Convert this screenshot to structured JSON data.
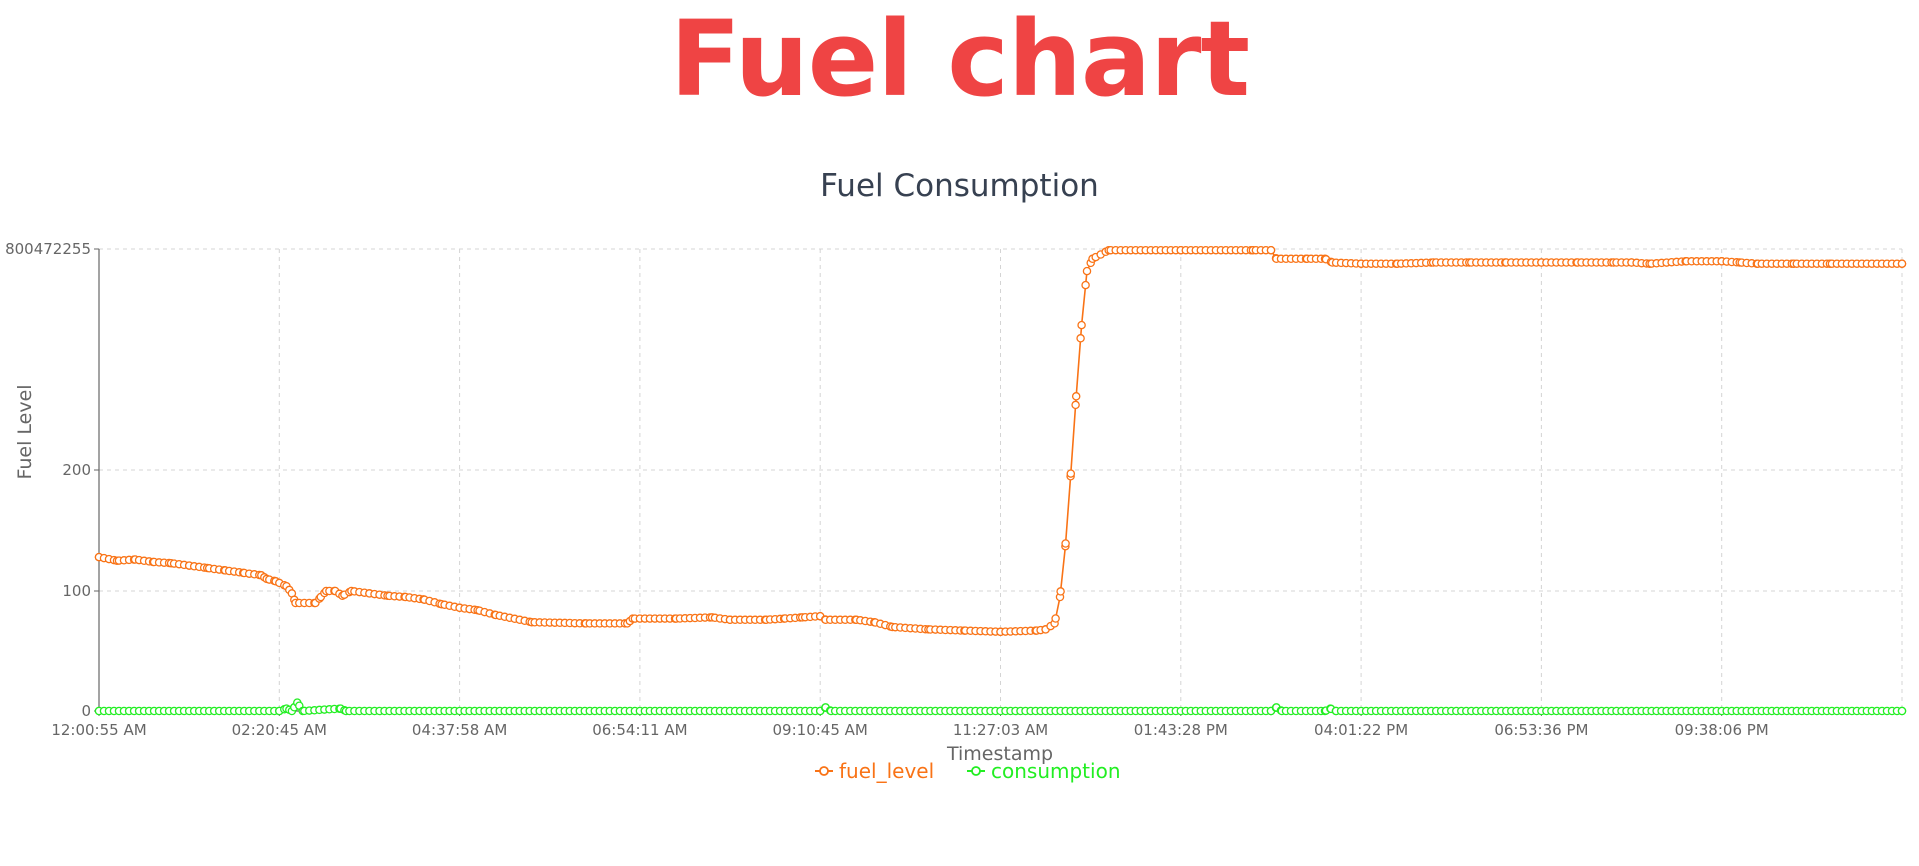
{
  "header": {
    "title": "Fuel chart"
  },
  "chart_data": {
    "type": "line",
    "title": "Fuel Consumption",
    "xlabel": "Timestamp",
    "ylabel": "Fuel Level",
    "x_ticks": [
      "12:00:55 AM",
      "02:20:45 AM",
      "04:37:58 AM",
      "06:54:11 AM",
      "09:10:45 AM",
      "11:27:03 AM",
      "01:43:28 PM",
      "04:01:22 PM",
      "06:53:36 PM",
      "09:38:06 PM"
    ],
    "y_ticks": [
      "0",
      "100",
      "200",
      "800472255"
    ],
    "y_axis_note": "non-linear scale: segment between 200 and 800472255 is compressed",
    "grid": true,
    "legend_position": "bottom",
    "series": [
      {
        "name": "fuel_level",
        "color": "#f97316",
        "points": [
          [
            0.0,
            128
          ],
          [
            1.0,
            125
          ],
          [
            2.0,
            126
          ],
          [
            3.0,
            124
          ],
          [
            4.0,
            123
          ],
          [
            5.0,
            121
          ],
          [
            6.0,
            119
          ],
          [
            7.0,
            117
          ],
          [
            8.0,
            115
          ],
          [
            9.0,
            113
          ],
          [
            9.3,
            110
          ],
          [
            9.8,
            108
          ],
          [
            10.4,
            104
          ],
          [
            10.7,
            98
          ],
          [
            10.9,
            90
          ],
          [
            12.0,
            90
          ],
          [
            12.3,
            95
          ],
          [
            12.6,
            100
          ],
          [
            13.1,
            100
          ],
          [
            13.5,
            96
          ],
          [
            14.0,
            100
          ],
          [
            15.0,
            98
          ],
          [
            16.0,
            96
          ],
          [
            17.0,
            95
          ],
          [
            18.0,
            93
          ],
          [
            19.0,
            89
          ],
          [
            20.0,
            86
          ],
          [
            21.0,
            84
          ],
          [
            22.0,
            80
          ],
          [
            24.0,
            74
          ],
          [
            27.0,
            73
          ],
          [
            29.3,
            73
          ],
          [
            29.6,
            77
          ],
          [
            32.0,
            77
          ],
          [
            34.0,
            78
          ],
          [
            35.0,
            76
          ],
          [
            37.0,
            76
          ],
          [
            38.0,
            77
          ],
          [
            39.0,
            78
          ],
          [
            40.0,
            79
          ],
          [
            40.3,
            76
          ],
          [
            42.0,
            76
          ],
          [
            43.0,
            74
          ],
          [
            44.0,
            70
          ],
          [
            46.0,
            68
          ],
          [
            48.0,
            67
          ],
          [
            50.0,
            66
          ],
          [
            52.0,
            67
          ],
          [
            52.5,
            68
          ],
          [
            53.0,
            73
          ],
          [
            53.3,
            95
          ],
          [
            53.6,
            137
          ],
          [
            53.9,
            197
          ],
          [
            54.2,
            260
          ],
          [
            54.5,
            318
          ],
          [
            54.8,
            362
          ],
          [
            55.1,
            372
          ],
          [
            56.0,
            379
          ],
          [
            60.0,
            379
          ],
          [
            64.0,
            379
          ],
          [
            65.0,
            379
          ],
          [
            65.3,
            372
          ],
          [
            67.0,
            372
          ],
          [
            68.0,
            372
          ],
          [
            68.4,
            369
          ],
          [
            70.0,
            368
          ],
          [
            72.0,
            368
          ],
          [
            74.0,
            369
          ],
          [
            76.0,
            369
          ],
          [
            78.0,
            369
          ],
          [
            80.0,
            369
          ],
          [
            82.0,
            369
          ],
          [
            84.0,
            369
          ],
          [
            85.0,
            369
          ],
          [
            86.0,
            368
          ],
          [
            88.0,
            370
          ],
          [
            90.0,
            370
          ],
          [
            91.0,
            369
          ],
          [
            92.0,
            368
          ],
          [
            94.0,
            368
          ],
          [
            96.0,
            368
          ],
          [
            100.0,
            368
          ]
        ]
      },
      {
        "name": "consumption",
        "color": "#22ee22",
        "points": [
          [
            0.0,
            0
          ],
          [
            10.0,
            0
          ],
          [
            10.4,
            2
          ],
          [
            10.7,
            0
          ],
          [
            11.0,
            7
          ],
          [
            11.3,
            0
          ],
          [
            13.4,
            2
          ],
          [
            13.7,
            0
          ],
          [
            40.0,
            0
          ],
          [
            40.3,
            3
          ],
          [
            40.6,
            0
          ],
          [
            65.0,
            0
          ],
          [
            65.3,
            3
          ],
          [
            65.6,
            0
          ],
          [
            68.0,
            0
          ],
          [
            68.3,
            2
          ],
          [
            68.6,
            0
          ],
          [
            100.0,
            0
          ]
        ]
      }
    ]
  }
}
